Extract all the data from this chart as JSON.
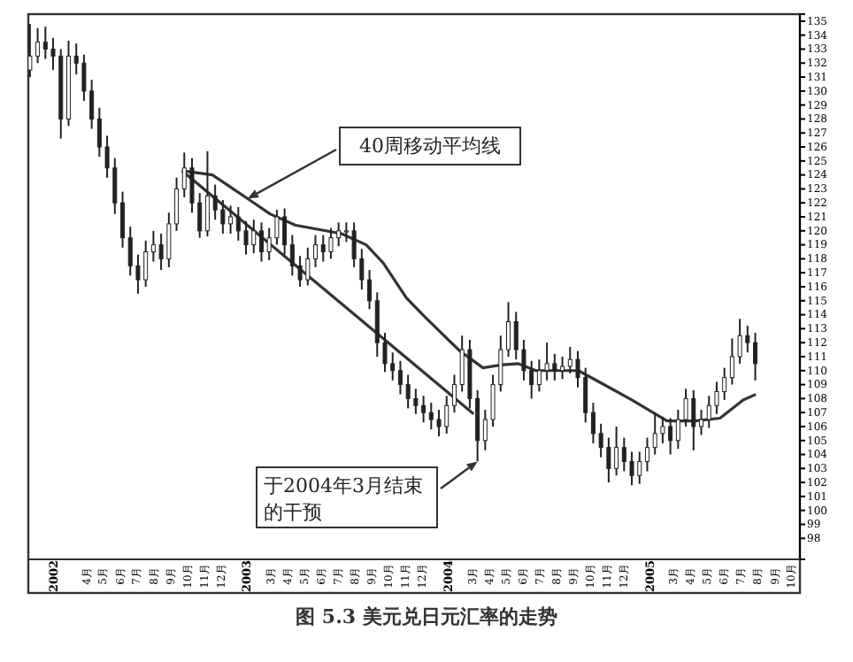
{
  "chart_data": {
    "type": "candlestick",
    "title": "图 5.3   美元兑日元汇率的走势",
    "x": [
      "2002-01-04",
      "2002-01-18",
      "2002-02-01",
      "2002-02-15",
      "2002-03-01",
      "2002-03-15",
      "2002-03-29",
      "2002-04-12",
      "2002-04-26",
      "2002-05-10",
      "2002-05-24",
      "2002-06-07",
      "2002-06-21",
      "2002-07-05",
      "2002-07-19",
      "2002-08-02",
      "2002-08-16",
      "2002-08-30",
      "2002-09-13",
      "2002-09-27",
      "2002-10-11",
      "2002-10-25",
      "2002-11-08",
      "2002-11-22",
      "2002-12-06",
      "2002-12-20",
      "2003-01-03",
      "2003-01-17",
      "2003-01-31",
      "2003-02-14",
      "2003-02-28",
      "2003-03-14",
      "2003-03-28",
      "2003-04-11",
      "2003-04-25",
      "2003-05-09",
      "2003-05-23",
      "2003-06-06",
      "2003-06-20",
      "2003-07-04",
      "2003-07-18",
      "2003-08-01",
      "2003-08-15",
      "2003-08-29",
      "2003-09-12",
      "2003-09-26",
      "2003-10-10",
      "2003-10-24",
      "2003-11-07",
      "2003-11-21",
      "2003-12-05",
      "2003-12-19",
      "2004-01-02",
      "2004-01-16",
      "2004-01-30",
      "2004-02-13",
      "2004-02-27",
      "2004-03-12",
      "2004-03-26",
      "2004-04-09",
      "2004-04-23",
      "2004-05-07",
      "2004-05-21",
      "2004-06-04",
      "2004-06-18",
      "2004-07-02",
      "2004-07-16",
      "2004-07-30",
      "2004-08-13",
      "2004-08-27",
      "2004-09-10",
      "2004-09-24",
      "2004-10-08",
      "2004-10-22",
      "2004-11-05",
      "2004-11-19",
      "2004-12-03",
      "2004-12-17",
      "2004-12-31",
      "2005-01-14",
      "2005-01-28",
      "2005-02-11",
      "2005-02-25",
      "2005-03-11",
      "2005-03-25",
      "2005-04-08",
      "2005-04-22",
      "2005-05-06",
      "2005-05-20",
      "2005-06-03",
      "2005-06-17",
      "2005-07-01",
      "2005-07-15",
      "2005-07-29",
      "2005-08-12"
    ],
    "ohlc": [
      [
        131.5,
        134.8,
        131,
        132.5
      ],
      [
        132.5,
        134.5,
        132,
        133.5
      ],
      [
        133.5,
        134.6,
        132.3,
        133
      ],
      [
        133,
        133.8,
        131.5,
        132.5
      ],
      [
        132.5,
        133,
        126.6,
        128
      ],
      [
        128,
        133.6,
        127.5,
        132.5
      ],
      [
        132.5,
        133.4,
        131.2,
        132
      ],
      [
        132,
        132.6,
        129.3,
        130
      ],
      [
        130,
        130.8,
        127.3,
        128
      ],
      [
        128,
        128.8,
        125.3,
        126
      ],
      [
        126,
        126.8,
        123.8,
        124.5
      ],
      [
        124.5,
        125.2,
        121.2,
        122
      ],
      [
        122,
        122.8,
        118.8,
        119.5
      ],
      [
        119.5,
        120.3,
        116.8,
        117.5
      ],
      [
        117.5,
        118.3,
        115.5,
        116.5
      ],
      [
        116.5,
        119.3,
        116,
        118.5
      ],
      [
        118.5,
        120,
        117.8,
        119
      ],
      [
        119,
        119.8,
        117.2,
        118
      ],
      [
        118,
        121.3,
        117.4,
        120.5
      ],
      [
        120.5,
        123.8,
        120,
        123
      ],
      [
        123,
        125.6,
        122.4,
        124.5
      ],
      [
        124.5,
        125.2,
        121.3,
        122
      ],
      [
        122,
        122.7,
        119.5,
        120
      ],
      [
        120,
        125.7,
        119.6,
        122.5
      ],
      [
        122.5,
        123.3,
        120.8,
        121.5
      ],
      [
        121.5,
        122.2,
        119.8,
        120.5
      ],
      [
        120.5,
        121.8,
        119.8,
        121
      ],
      [
        121,
        121.7,
        119.3,
        120
      ],
      [
        120,
        120.7,
        118.3,
        119
      ],
      [
        119,
        120.8,
        118.4,
        120
      ],
      [
        120,
        120.6,
        117.8,
        118.5
      ],
      [
        118.5,
        120.2,
        117.9,
        119.5
      ],
      [
        119.5,
        121.5,
        119,
        121
      ],
      [
        121,
        121.6,
        118.3,
        119
      ],
      [
        119,
        119.7,
        116.8,
        117.5
      ],
      [
        117.5,
        118.2,
        116,
        116.5
      ],
      [
        116.5,
        118.8,
        116.1,
        118
      ],
      [
        118,
        119.7,
        117.4,
        119
      ],
      [
        119,
        119.7,
        117.8,
        118.5
      ],
      [
        118.5,
        120.2,
        118,
        119.5
      ],
      [
        119.5,
        120.6,
        118.9,
        120
      ],
      [
        120,
        120.6,
        119.2,
        120
      ],
      [
        120,
        120.6,
        117.4,
        118
      ],
      [
        118,
        118.7,
        115.8,
        116.5
      ],
      [
        116.5,
        117.2,
        114.4,
        115
      ],
      [
        115,
        115.6,
        111,
        112
      ],
      [
        112,
        112.7,
        109.9,
        110.5
      ],
      [
        110.5,
        111.3,
        109.3,
        110
      ],
      [
        110,
        110.7,
        108.3,
        109
      ],
      [
        109,
        109.7,
        107.3,
        108
      ],
      [
        108,
        108.7,
        106.9,
        107.5
      ],
      [
        107.5,
        108.2,
        106.3,
        107
      ],
      [
        107,
        107.7,
        105.8,
        106.5
      ],
      [
        106.5,
        107.2,
        105.3,
        106
      ],
      [
        106,
        108.2,
        105.5,
        107.5
      ],
      [
        107.5,
        109.7,
        107,
        109
      ],
      [
        109,
        112.5,
        108.5,
        111.5
      ],
      [
        111.5,
        112.2,
        107.3,
        108
      ],
      [
        108,
        108.6,
        103.5,
        105
      ],
      [
        105,
        107.2,
        104.3,
        106.5
      ],
      [
        106.5,
        109.7,
        106,
        109
      ],
      [
        109,
        112.5,
        108.5,
        111.5
      ],
      [
        111.5,
        114.9,
        111,
        113.5
      ],
      [
        113.5,
        114.2,
        110.8,
        111.5
      ],
      [
        111.5,
        112.2,
        109.3,
        110
      ],
      [
        110,
        110.7,
        108,
        109
      ],
      [
        109,
        110.8,
        108.5,
        110
      ],
      [
        110,
        112,
        109.3,
        110.5
      ],
      [
        110.5,
        111.2,
        109.3,
        110
      ],
      [
        110,
        111,
        109.4,
        110.3
      ],
      [
        110.3,
        111.7,
        109.8,
        110.8
      ],
      [
        110.8,
        111.4,
        108.8,
        109.5
      ],
      [
        109.5,
        110.2,
        106.3,
        107
      ],
      [
        107,
        107.7,
        104.8,
        105.5
      ],
      [
        105.5,
        106.2,
        103.8,
        104.5
      ],
      [
        104.5,
        105.2,
        102,
        103
      ],
      [
        103,
        106,
        102.5,
        104.5
      ],
      [
        104.5,
        105.2,
        102.8,
        103.5
      ],
      [
        103.5,
        104.2,
        101.8,
        102.5
      ],
      [
        102.5,
        104.2,
        101.9,
        103.5
      ],
      [
        103.5,
        105.2,
        102.8,
        104.5
      ],
      [
        104.5,
        107,
        104,
        105.5
      ],
      [
        105.5,
        106.7,
        104.8,
        106
      ],
      [
        106,
        106.6,
        104,
        105
      ],
      [
        105,
        107.2,
        104.4,
        106.5
      ],
      [
        106.5,
        108.7,
        106,
        108
      ],
      [
        108,
        108.6,
        104.3,
        106
      ],
      [
        106,
        107.2,
        105.4,
        106.5
      ],
      [
        106.5,
        108.2,
        105.9,
        107.5
      ],
      [
        107.5,
        109.2,
        106.9,
        108.5
      ],
      [
        108.5,
        110.2,
        107.9,
        109.5
      ],
      [
        109.5,
        112.3,
        109,
        111
      ],
      [
        111,
        113.7,
        110.5,
        112.5
      ],
      [
        112.5,
        113.2,
        111.3,
        112
      ],
      [
        112,
        112.7,
        109.3,
        110.5
      ]
    ],
    "color": "#222222",
    "series": [
      {
        "type": "line",
        "color": "#333333",
        "x": [
          "2002-10-07",
          "2002-12-01",
          "2003-02-03",
          "2003-03-16",
          "2003-05-01",
          "2003-07-23",
          "2003-09-06",
          "2003-10-07",
          "2003-11-18",
          "2003-12-20",
          "2004-02-23",
          "2004-04-05",
          "2004-05-07",
          "2004-06-08",
          "2004-07-10",
          "2004-09-25",
          "2004-11-06",
          "2004-12-31",
          "2005-03-05",
          "2005-04-25",
          "2005-06-09",
          "2005-07-21",
          "2005-08-13"
        ],
        "values": [
          124.3,
          124,
          122.3,
          121.2,
          120.4,
          119.8,
          119,
          117.7,
          115.2,
          113.9,
          111.4,
          110.2,
          110.4,
          110.5,
          110,
          110,
          109.1,
          107.9,
          106.4,
          106.4,
          106.6,
          107.9,
          108.3
        ]
      },
      {
        "type": "line",
        "color": "#333333",
        "x": [
          "2002-10-07",
          "2004-03-19"
        ],
        "values": [
          124.3,
          106.9
        ]
      }
    ],
    "annotations": [
      {
        "text": "40周移动平均线",
        "x": "2003-02-03",
        "y": 122.3
      },
      {
        "text": "于2004年3月结束的干预",
        "x": "2004-03-26",
        "y": 103.5
      }
    ],
    "xlim": [
      "2002-01-01",
      "2005-11-01"
    ],
    "xticks": [
      {
        "value": "2002-02-15",
        "label": "2002"
      },
      {
        "value": "2002-04-16",
        "label": "4月"
      },
      {
        "value": "2002-05-16",
        "label": "5月"
      },
      {
        "value": "2002-06-16",
        "label": "6月"
      },
      {
        "value": "2002-07-16",
        "label": "7月"
      },
      {
        "value": "2002-08-16",
        "label": "8月"
      },
      {
        "value": "2002-09-16",
        "label": "9月"
      },
      {
        "value": "2002-10-16",
        "label": "10月"
      },
      {
        "value": "2002-11-16",
        "label": "11月"
      },
      {
        "value": "2002-12-16",
        "label": "12月"
      },
      {
        "value": "2003-02-01",
        "label": "2003"
      },
      {
        "value": "2003-03-16",
        "label": "3月"
      },
      {
        "value": "2003-04-16",
        "label": "4月"
      },
      {
        "value": "2003-05-16",
        "label": "5月"
      },
      {
        "value": "2003-06-16",
        "label": "6月"
      },
      {
        "value": "2003-07-16",
        "label": "7月"
      },
      {
        "value": "2003-08-16",
        "label": "8月"
      },
      {
        "value": "2003-09-16",
        "label": "9月"
      },
      {
        "value": "2003-10-16",
        "label": "10月"
      },
      {
        "value": "2003-11-16",
        "label": "11月"
      },
      {
        "value": "2003-12-16",
        "label": "12月"
      },
      {
        "value": "2004-02-01",
        "label": "2004"
      },
      {
        "value": "2004-03-16",
        "label": "3月"
      },
      {
        "value": "2004-04-16",
        "label": "4月"
      },
      {
        "value": "2004-05-16",
        "label": "5月"
      },
      {
        "value": "2004-06-16",
        "label": "6月"
      },
      {
        "value": "2004-07-16",
        "label": "7月"
      },
      {
        "value": "2004-08-16",
        "label": "8月"
      },
      {
        "value": "2004-09-16",
        "label": "9月"
      },
      {
        "value": "2004-10-16",
        "label": "10月"
      },
      {
        "value": "2004-11-16",
        "label": "11月"
      },
      {
        "value": "2004-12-16",
        "label": "12月"
      },
      {
        "value": "2005-02-01",
        "label": "2005"
      },
      {
        "value": "2005-03-16",
        "label": "3月"
      },
      {
        "value": "2005-04-16",
        "label": "4月"
      },
      {
        "value": "2005-05-16",
        "label": "5月"
      },
      {
        "value": "2005-06-16",
        "label": "6月"
      },
      {
        "value": "2005-07-16",
        "label": "7月"
      },
      {
        "value": "2005-08-16",
        "label": "8月"
      },
      {
        "value": "2005-09-16",
        "label": "9月"
      },
      {
        "value": "2005-10-16",
        "label": "10月"
      }
    ],
    "ylim": [
      96.5,
      135.5
    ],
    "yticks": [
      98,
      99,
      100,
      101,
      102,
      103,
      104,
      105,
      106,
      107,
      108,
      109,
      110,
      111,
      112,
      113,
      114,
      115,
      116,
      117,
      118,
      119,
      120,
      121,
      122,
      123,
      124,
      125,
      126,
      127,
      128,
      129,
      130,
      131,
      132,
      133,
      134,
      135
    ]
  }
}
